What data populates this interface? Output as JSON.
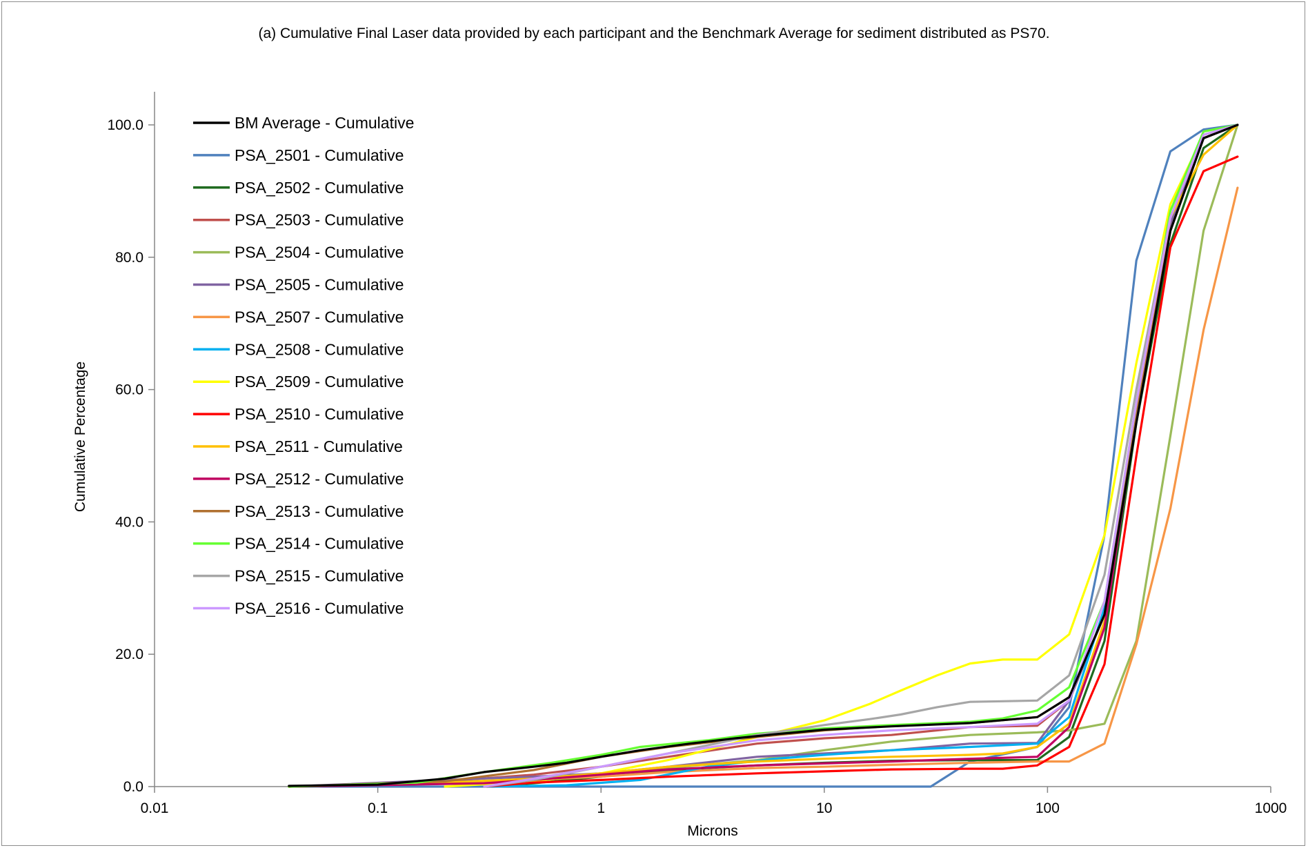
{
  "chart_data": {
    "type": "line",
    "title": "(a) Cumulative Final Laser data provided by each participant and the Benchmark Average for sediment distributed as PS70.",
    "xlabel": "Microns",
    "ylabel": "Cumulative Percentage",
    "x_scale": "log",
    "xlim": [
      0.01,
      1000
    ],
    "ylim": [
      0,
      100
    ],
    "x_ticks": [
      "0.01",
      "0.1",
      "1",
      "10",
      "100",
      "1000"
    ],
    "y_ticks": [
      "0.0",
      "20.0",
      "40.0",
      "60.0",
      "80.0",
      "100.0"
    ],
    "grid": false,
    "legend_position": "top-left",
    "series": [
      {
        "name": "BM Average - Cumulative",
        "color": "#000000",
        "x": [
          0.04,
          0.1,
          0.2,
          0.3,
          0.5,
          0.7,
          1.0,
          1.5,
          2.5,
          4,
          6,
          10,
          20,
          45,
          90,
          125,
          180,
          250,
          355,
          500,
          710
        ],
        "y": [
          0.1,
          0.3,
          1.2,
          2.2,
          3.0,
          3.6,
          4.5,
          5.5,
          6.5,
          7.3,
          7.9,
          8.6,
          9.1,
          9.6,
          10.5,
          13.5,
          26,
          55,
          84,
          98,
          100
        ]
      },
      {
        "name": "PSA_2501 - Cumulative",
        "color": "#4F81BD",
        "x": [
          0.04,
          1.0,
          10,
          20,
          30,
          45,
          90,
          125,
          180,
          250,
          355,
          500,
          710
        ],
        "y": [
          0,
          0,
          0,
          0,
          0,
          3.8,
          6,
          12,
          38,
          79.5,
          96,
          99.3,
          100
        ]
      },
      {
        "name": "PSA_2502 - Cumulative",
        "color": "#1F6B1F",
        "x": [
          0.3,
          0.5,
          1.0,
          2,
          5,
          10,
          20,
          45,
          90,
          125,
          180,
          250,
          355,
          500,
          710
        ],
        "y": [
          0,
          0.5,
          1.5,
          2.5,
          3.2,
          3.6,
          3.9,
          4.0,
          4.0,
          7.5,
          22,
          55,
          82,
          96.5,
          100
        ]
      },
      {
        "name": "PSA_2503 - Cumulative",
        "color": "#C0504D",
        "x": [
          0.04,
          0.2,
          0.5,
          1.0,
          2,
          5,
          10,
          20,
          45,
          90,
          125,
          180,
          250,
          355,
          500,
          710
        ],
        "y": [
          0,
          0.8,
          1.8,
          3.0,
          4.5,
          6.5,
          7.3,
          7.8,
          9.0,
          9.2,
          13,
          26,
          57,
          85,
          98,
          100
        ]
      },
      {
        "name": "PSA_2504 - Cumulative",
        "color": "#9BBB59",
        "x": [
          0.04,
          0.2,
          0.5,
          1.0,
          2,
          5,
          10,
          20,
          45,
          90,
          125,
          180,
          250,
          355,
          500,
          710
        ],
        "y": [
          0,
          0.5,
          1.2,
          2.0,
          2.8,
          4.0,
          5.5,
          6.8,
          7.8,
          8.2,
          8.5,
          9.5,
          22,
          53,
          84,
          100
        ]
      },
      {
        "name": "PSA_2505 - Cumulative",
        "color": "#8064A2",
        "x": [
          0.04,
          0.2,
          0.5,
          1.0,
          2,
          5,
          10,
          20,
          45,
          90,
          125,
          180,
          250,
          355,
          500,
          710
        ],
        "y": [
          0,
          1.0,
          1.5,
          2.0,
          3.0,
          4.5,
          5.0,
          5.5,
          6.5,
          6.6,
          13,
          26,
          57,
          85,
          98,
          100
        ]
      },
      {
        "name": "PSA_2507 - Cumulative",
        "color": "#F79646",
        "x": [
          0.04,
          0.2,
          0.5,
          1.0,
          2,
          5,
          10,
          20,
          45,
          90,
          125,
          180,
          250,
          355,
          500,
          710
        ],
        "y": [
          0,
          0.5,
          1.0,
          1.5,
          2.2,
          2.8,
          3.0,
          3.3,
          3.6,
          3.8,
          3.8,
          6.5,
          21.5,
          42,
          69,
          90.5
        ]
      },
      {
        "name": "PSA_2508 - Cumulative",
        "color": "#00B0F0",
        "x": [
          0.3,
          0.7,
          1.5,
          3,
          6,
          10,
          20,
          45,
          90,
          125,
          180,
          250,
          355,
          500,
          710
        ],
        "y": [
          0,
          0.2,
          1.0,
          3.0,
          4.2,
          4.8,
          5.5,
          6.0,
          6.5,
          10.5,
          27,
          56,
          84,
          98,
          100
        ]
      },
      {
        "name": "PSA_2509 - Cumulative",
        "color": "#FFFF00",
        "x": [
          0.2,
          0.5,
          1.0,
          2,
          5,
          10,
          16,
          22,
          32,
          45,
          63,
          90,
          125,
          180,
          250,
          355,
          500,
          710
        ],
        "y": [
          0,
          0.8,
          2.0,
          4.0,
          7.5,
          10,
          12.5,
          14.5,
          16.8,
          18.6,
          19.2,
          19.2,
          23,
          38,
          64,
          88,
          98.5,
          100
        ]
      },
      {
        "name": "PSA_2510 - Cumulative",
        "color": "#FF0000",
        "x": [
          0.3,
          0.5,
          1.0,
          2,
          5,
          10,
          20,
          45,
          63,
          90,
          125,
          180,
          250,
          355,
          500,
          710
        ],
        "y": [
          0,
          0.6,
          1.0,
          1.5,
          2.0,
          2.3,
          2.6,
          2.7,
          2.7,
          3.2,
          6,
          18.5,
          50,
          81.5,
          93,
          95.2
        ]
      },
      {
        "name": "PSA_2511 - Cumulative",
        "color": "#FFC000",
        "x": [
          0.04,
          0.2,
          0.5,
          1.0,
          2,
          5,
          10,
          20,
          45,
          63,
          90,
          125,
          180,
          250,
          355,
          500,
          710
        ],
        "y": [
          0,
          0.6,
          1.2,
          2.0,
          3.0,
          3.8,
          4.2,
          4.5,
          4.8,
          5.0,
          6.0,
          9.5,
          25,
          56,
          86,
          95.5,
          100
        ]
      },
      {
        "name": "PSA_2512 - Cumulative",
        "color": "#C00060",
        "x": [
          0.04,
          0.3,
          0.5,
          1.0,
          2,
          5,
          10,
          20,
          45,
          90,
          125,
          180,
          250,
          355,
          500,
          710
        ],
        "y": [
          0,
          0.5,
          1.0,
          1.8,
          2.6,
          3.2,
          3.5,
          3.8,
          4.2,
          4.5,
          9,
          24,
          56,
          84,
          98,
          100
        ]
      },
      {
        "name": "PSA_2513 - Cumulative",
        "color": "#B07030",
        "x": [
          0.04,
          0.2,
          0.5,
          1.0,
          2,
          5,
          10,
          20,
          45,
          90,
          125,
          180,
          250,
          355,
          500,
          710
        ],
        "y": [
          0,
          0.8,
          2.5,
          4.5,
          6.0,
          7.5,
          8.5,
          9.2,
          9.6,
          10.5,
          13.5,
          26,
          56,
          84,
          98,
          100
        ]
      },
      {
        "name": "PSA_2514 - Cumulative",
        "color": "#66FF33",
        "x": [
          0.04,
          0.15,
          0.3,
          0.6,
          1.0,
          1.5,
          3,
          5,
          10,
          20,
          45,
          63,
          90,
          125,
          180,
          250,
          355,
          500,
          710
        ],
        "y": [
          0,
          0.6,
          2.2,
          3.6,
          4.8,
          6.0,
          7.0,
          8.0,
          8.8,
          9.3,
          9.8,
          10.3,
          11.5,
          15,
          28,
          58,
          87,
          99,
          100
        ]
      },
      {
        "name": "PSA_2515 - Cumulative",
        "color": "#A6A6A6",
        "x": [
          0.3,
          0.5,
          1.0,
          2,
          5,
          10,
          16,
          22,
          32,
          45,
          63,
          90,
          125,
          180,
          250,
          355,
          500,
          710
        ],
        "y": [
          0,
          1.0,
          3.0,
          5.0,
          7.8,
          9.3,
          10.2,
          10.9,
          12.0,
          12.8,
          12.9,
          13.0,
          16.8,
          32,
          60,
          86,
          98.5,
          100
        ]
      },
      {
        "name": "PSA_2516 - Cumulative",
        "color": "#CC99FF",
        "x": [
          0.3,
          0.5,
          1.0,
          2,
          5,
          10,
          20,
          45,
          90,
          125,
          180,
          250,
          355,
          500,
          710
        ],
        "y": [
          0,
          1.2,
          3.0,
          5.0,
          7.0,
          7.8,
          8.5,
          9.0,
          9.5,
          13,
          28,
          58,
          86,
          98.5,
          100
        ]
      }
    ]
  }
}
